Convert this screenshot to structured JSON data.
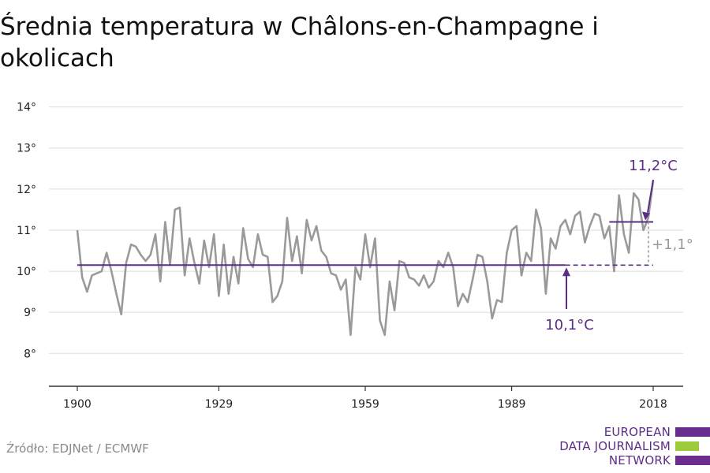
{
  "title": "Średnia temperatura w Châlons-en-Champagne i okolicach",
  "source": "Źródło: EDJNet / ECMWF",
  "logo": {
    "lines": [
      "EUROPEAN",
      "DATA JOURNALISM",
      "NETWORK"
    ],
    "colors": {
      "purple": "#6b2c8f",
      "green": "#9ecb3b"
    }
  },
  "colors": {
    "series": "#9a9a9a",
    "baseline": "#5b2d86",
    "recent": "#5b2d86",
    "grid": "#dddddd",
    "axis": "#333333",
    "delta": "#9a9a9a"
  },
  "chart_data": {
    "type": "line",
    "title": "Średnia temperatura w Châlons-en-Champagne i okolicach",
    "x_ticks": [
      1900,
      1929,
      1959,
      1989,
      2018
    ],
    "x_tick_labels": [
      "1900",
      "1929",
      "1959",
      "1989",
      "2018"
    ],
    "y_ticks": [
      8,
      9,
      10,
      11,
      12,
      13,
      14
    ],
    "y_tick_labels": [
      "8°",
      "9°",
      "10°",
      "11°",
      "12°",
      "13°",
      "14°"
    ],
    "xlim": [
      1900,
      2018
    ],
    "ylim": [
      7.2,
      14.3
    ],
    "grid": true,
    "series": [
      {
        "x": [
          1900,
          1901,
          1902,
          1903,
          1904,
          1905,
          1906,
          1907,
          1908,
          1909,
          1910,
          1911,
          1912,
          1913,
          1914,
          1915,
          1916,
          1917,
          1918,
          1919,
          1920,
          1921,
          1922,
          1923,
          1924,
          1925,
          1926,
          1927,
          1928,
          1929,
          1930,
          1931,
          1932,
          1933,
          1934,
          1935,
          1936,
          1937,
          1938,
          1939,
          1940,
          1941,
          1942,
          1943,
          1944,
          1945,
          1946,
          1947,
          1948,
          1949,
          1950,
          1951,
          1952,
          1953,
          1954,
          1955,
          1956,
          1957,
          1958,
          1959,
          1960,
          1961,
          1962,
          1963,
          1964,
          1965,
          1966,
          1967,
          1968,
          1969,
          1970,
          1971,
          1972,
          1973,
          1974,
          1975,
          1976,
          1977,
          1978,
          1979,
          1980,
          1981,
          1982,
          1983,
          1984,
          1985,
          1986,
          1987,
          1988,
          1989,
          1990,
          1991,
          1992,
          1993,
          1994,
          1995,
          1996,
          1997,
          1998,
          1999,
          2000,
          2001,
          2002,
          2003,
          2004,
          2005,
          2006,
          2007,
          2008,
          2009,
          2010,
          2011,
          2012,
          2013,
          2014,
          2015,
          2016,
          2017,
          2018
        ],
        "y": [
          11.0,
          9.85,
          9.5,
          9.9,
          9.95,
          10.0,
          10.45,
          10.0,
          9.45,
          8.95,
          10.2,
          10.65,
          10.6,
          10.4,
          10.25,
          10.4,
          10.9,
          9.75,
          11.2,
          10.15,
          11.5,
          11.55,
          9.9,
          10.8,
          10.2,
          9.7,
          10.75,
          10.1,
          10.9,
          9.4,
          10.65,
          9.45,
          10.35,
          9.7,
          11.05,
          10.3,
          10.1,
          10.9,
          10.4,
          10.35,
          9.25,
          9.4,
          9.75,
          11.3,
          10.25,
          10.85,
          9.95,
          11.25,
          10.75,
          11.1,
          10.5,
          10.35,
          9.95,
          9.9,
          9.55,
          9.8,
          8.45,
          10.1,
          9.8,
          10.9,
          10.1,
          10.8,
          8.8,
          8.45,
          9.75,
          9.05,
          10.25,
          10.2,
          9.85,
          9.8,
          9.65,
          9.9,
          9.6,
          9.75,
          10.25,
          10.1,
          10.45,
          10.1,
          9.15,
          9.45,
          9.25,
          9.8,
          10.4,
          10.35,
          9.75,
          8.85,
          9.3,
          9.25,
          10.45,
          11.0,
          11.1,
          9.9,
          10.45,
          10.25,
          11.5,
          11.05,
          9.45,
          10.8,
          10.55,
          11.1,
          11.25,
          10.9,
          11.35,
          11.45,
          10.7,
          11.1,
          11.4,
          11.35,
          10.8,
          11.1,
          10.0,
          11.85,
          10.9,
          10.45,
          11.9,
          11.75,
          11.0,
          11.3,
          12.2
        ]
      }
    ],
    "annotations": {
      "baseline": {
        "value": 10.15,
        "solid_from": 1900,
        "solid_to": 2000,
        "dashed_to": 2018,
        "label": "10,1°C"
      },
      "recent": {
        "value": 11.2,
        "from": 2009,
        "to": 2018,
        "label": "11,2°C"
      },
      "delta": {
        "label": "+1,1°"
      }
    }
  }
}
